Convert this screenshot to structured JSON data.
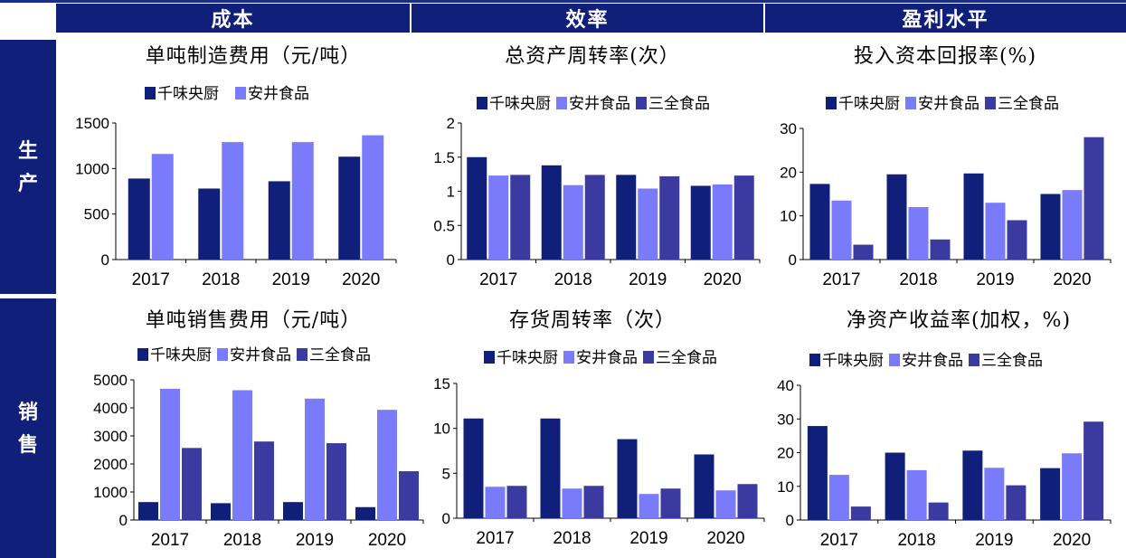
{
  "headers": {
    "cost": "成本",
    "efficiency": "效率",
    "profit": "盈利水平"
  },
  "row_labels": {
    "production": "生\n产",
    "sales": "销\n售"
  },
  "colors": {
    "header_bg": "#0f1f7a",
    "qianwei": "#0f1f7a",
    "anjing": "#7a7bfa",
    "sanquan": "#3b3aa0"
  },
  "chart_data": [
    {
      "id": "c1",
      "type": "bar",
      "title": "单吨制造费用（元/吨）",
      "categories": [
        "2017",
        "2018",
        "2019",
        "2020"
      ],
      "series": [
        {
          "name": "千味央厨",
          "color": "#0f1f7a",
          "values": [
            890,
            780,
            860,
            1130
          ]
        },
        {
          "name": "安井食品",
          "color": "#7a7bfa",
          "values": [
            1160,
            1290,
            1290,
            1365
          ]
        }
      ],
      "ylim": [
        0,
        1500
      ],
      "yticks": [
        "0",
        "500",
        "1000",
        "1500"
      ],
      "ytick_values": [
        0,
        500,
        1000,
        1500
      ],
      "legend_position": "top"
    },
    {
      "id": "c2",
      "type": "bar",
      "title": "总资产周转率(次）",
      "categories": [
        "2017",
        "2018",
        "2019",
        "2020"
      ],
      "series": [
        {
          "name": "千味央厨",
          "color": "#0f1f7a",
          "values": [
            1.5,
            1.38,
            1.24,
            1.08
          ]
        },
        {
          "name": "安井食品",
          "color": "#7a7bfa",
          "values": [
            1.23,
            1.09,
            1.04,
            1.1
          ]
        },
        {
          "name": "三全食品",
          "color": "#3b3aa0",
          "values": [
            1.24,
            1.24,
            1.22,
            1.23
          ]
        }
      ],
      "ylim": [
        0,
        2
      ],
      "yticks": [
        "0",
        "0.5",
        "1",
        "1.5",
        "2"
      ],
      "ytick_values": [
        0,
        0.5,
        1,
        1.5,
        2
      ],
      "legend_position": "top"
    },
    {
      "id": "c3",
      "type": "bar",
      "title": "投入资本回报率(%)",
      "categories": [
        "2017",
        "2018",
        "2019",
        "2020"
      ],
      "series": [
        {
          "name": "千味央厨",
          "color": "#0f1f7a",
          "values": [
            17.3,
            19.5,
            19.7,
            15
          ]
        },
        {
          "name": "安井食品",
          "color": "#7a7bfa",
          "values": [
            13.5,
            12,
            13,
            15.9
          ]
        },
        {
          "name": "三全食品",
          "color": "#3b3aa0",
          "values": [
            3.4,
            4.6,
            9,
            28
          ]
        }
      ],
      "ylim": [
        0,
        30
      ],
      "yticks": [
        "0",
        "10",
        "20",
        "30"
      ],
      "ytick_values": [
        0,
        10,
        20,
        30
      ],
      "legend_position": "top"
    },
    {
      "id": "c4",
      "type": "bar",
      "title": "单吨销售费用（元/吨）",
      "categories": [
        "2017",
        "2018",
        "2019",
        "2020"
      ],
      "series": [
        {
          "name": "千味央厨",
          "color": "#0f1f7a",
          "values": [
            640,
            600,
            640,
            460
          ]
        },
        {
          "name": "安井食品",
          "color": "#7a7bfa",
          "values": [
            4680,
            4630,
            4330,
            3930
          ]
        },
        {
          "name": "三全食品",
          "color": "#3b3aa0",
          "values": [
            2570,
            2800,
            2740,
            1740
          ]
        }
      ],
      "ylim": [
        0,
        5000
      ],
      "yticks": [
        "0",
        "1000",
        "2000",
        "3000",
        "4000",
        "5000"
      ],
      "ytick_values": [
        0,
        1000,
        2000,
        3000,
        4000,
        5000
      ],
      "legend_position": "top"
    },
    {
      "id": "c5",
      "type": "bar",
      "title": "存货周转率（次）",
      "categories": [
        "2017",
        "2018",
        "2019",
        "2020"
      ],
      "series": [
        {
          "name": "千味央厨",
          "color": "#0f1f7a",
          "values": [
            11.1,
            11.1,
            8.8,
            7.1
          ]
        },
        {
          "name": "安井食品",
          "color": "#7a7bfa",
          "values": [
            3.5,
            3.3,
            2.7,
            3.1
          ]
        },
        {
          "name": "三全食品",
          "color": "#3b3aa0",
          "values": [
            3.6,
            3.6,
            3.3,
            3.8
          ]
        }
      ],
      "ylim": [
        0,
        15
      ],
      "yticks": [
        "0",
        "5",
        "10",
        "15"
      ],
      "ytick_values": [
        0,
        5,
        10,
        15
      ],
      "legend_position": "top"
    },
    {
      "id": "c6",
      "type": "bar",
      "title": "净资产收益率(加权，%)",
      "categories": [
        "2017",
        "2018",
        "2019",
        "2020"
      ],
      "series": [
        {
          "name": "千味央厨",
          "color": "#0f1f7a",
          "values": [
            27.9,
            20,
            20.6,
            15.4
          ]
        },
        {
          "name": "安井食品",
          "color": "#7a7bfa",
          "values": [
            13.4,
            14.8,
            15.5,
            19.8
          ]
        },
        {
          "name": "三全食品",
          "color": "#3b3aa0",
          "values": [
            4,
            5.2,
            10.3,
            29.2
          ]
        }
      ],
      "ylim": [
        0,
        40
      ],
      "yticks": [
        "0",
        "10",
        "20",
        "30",
        "40"
      ],
      "ytick_values": [
        0,
        10,
        20,
        30,
        40
      ],
      "legend_position": "top"
    }
  ]
}
